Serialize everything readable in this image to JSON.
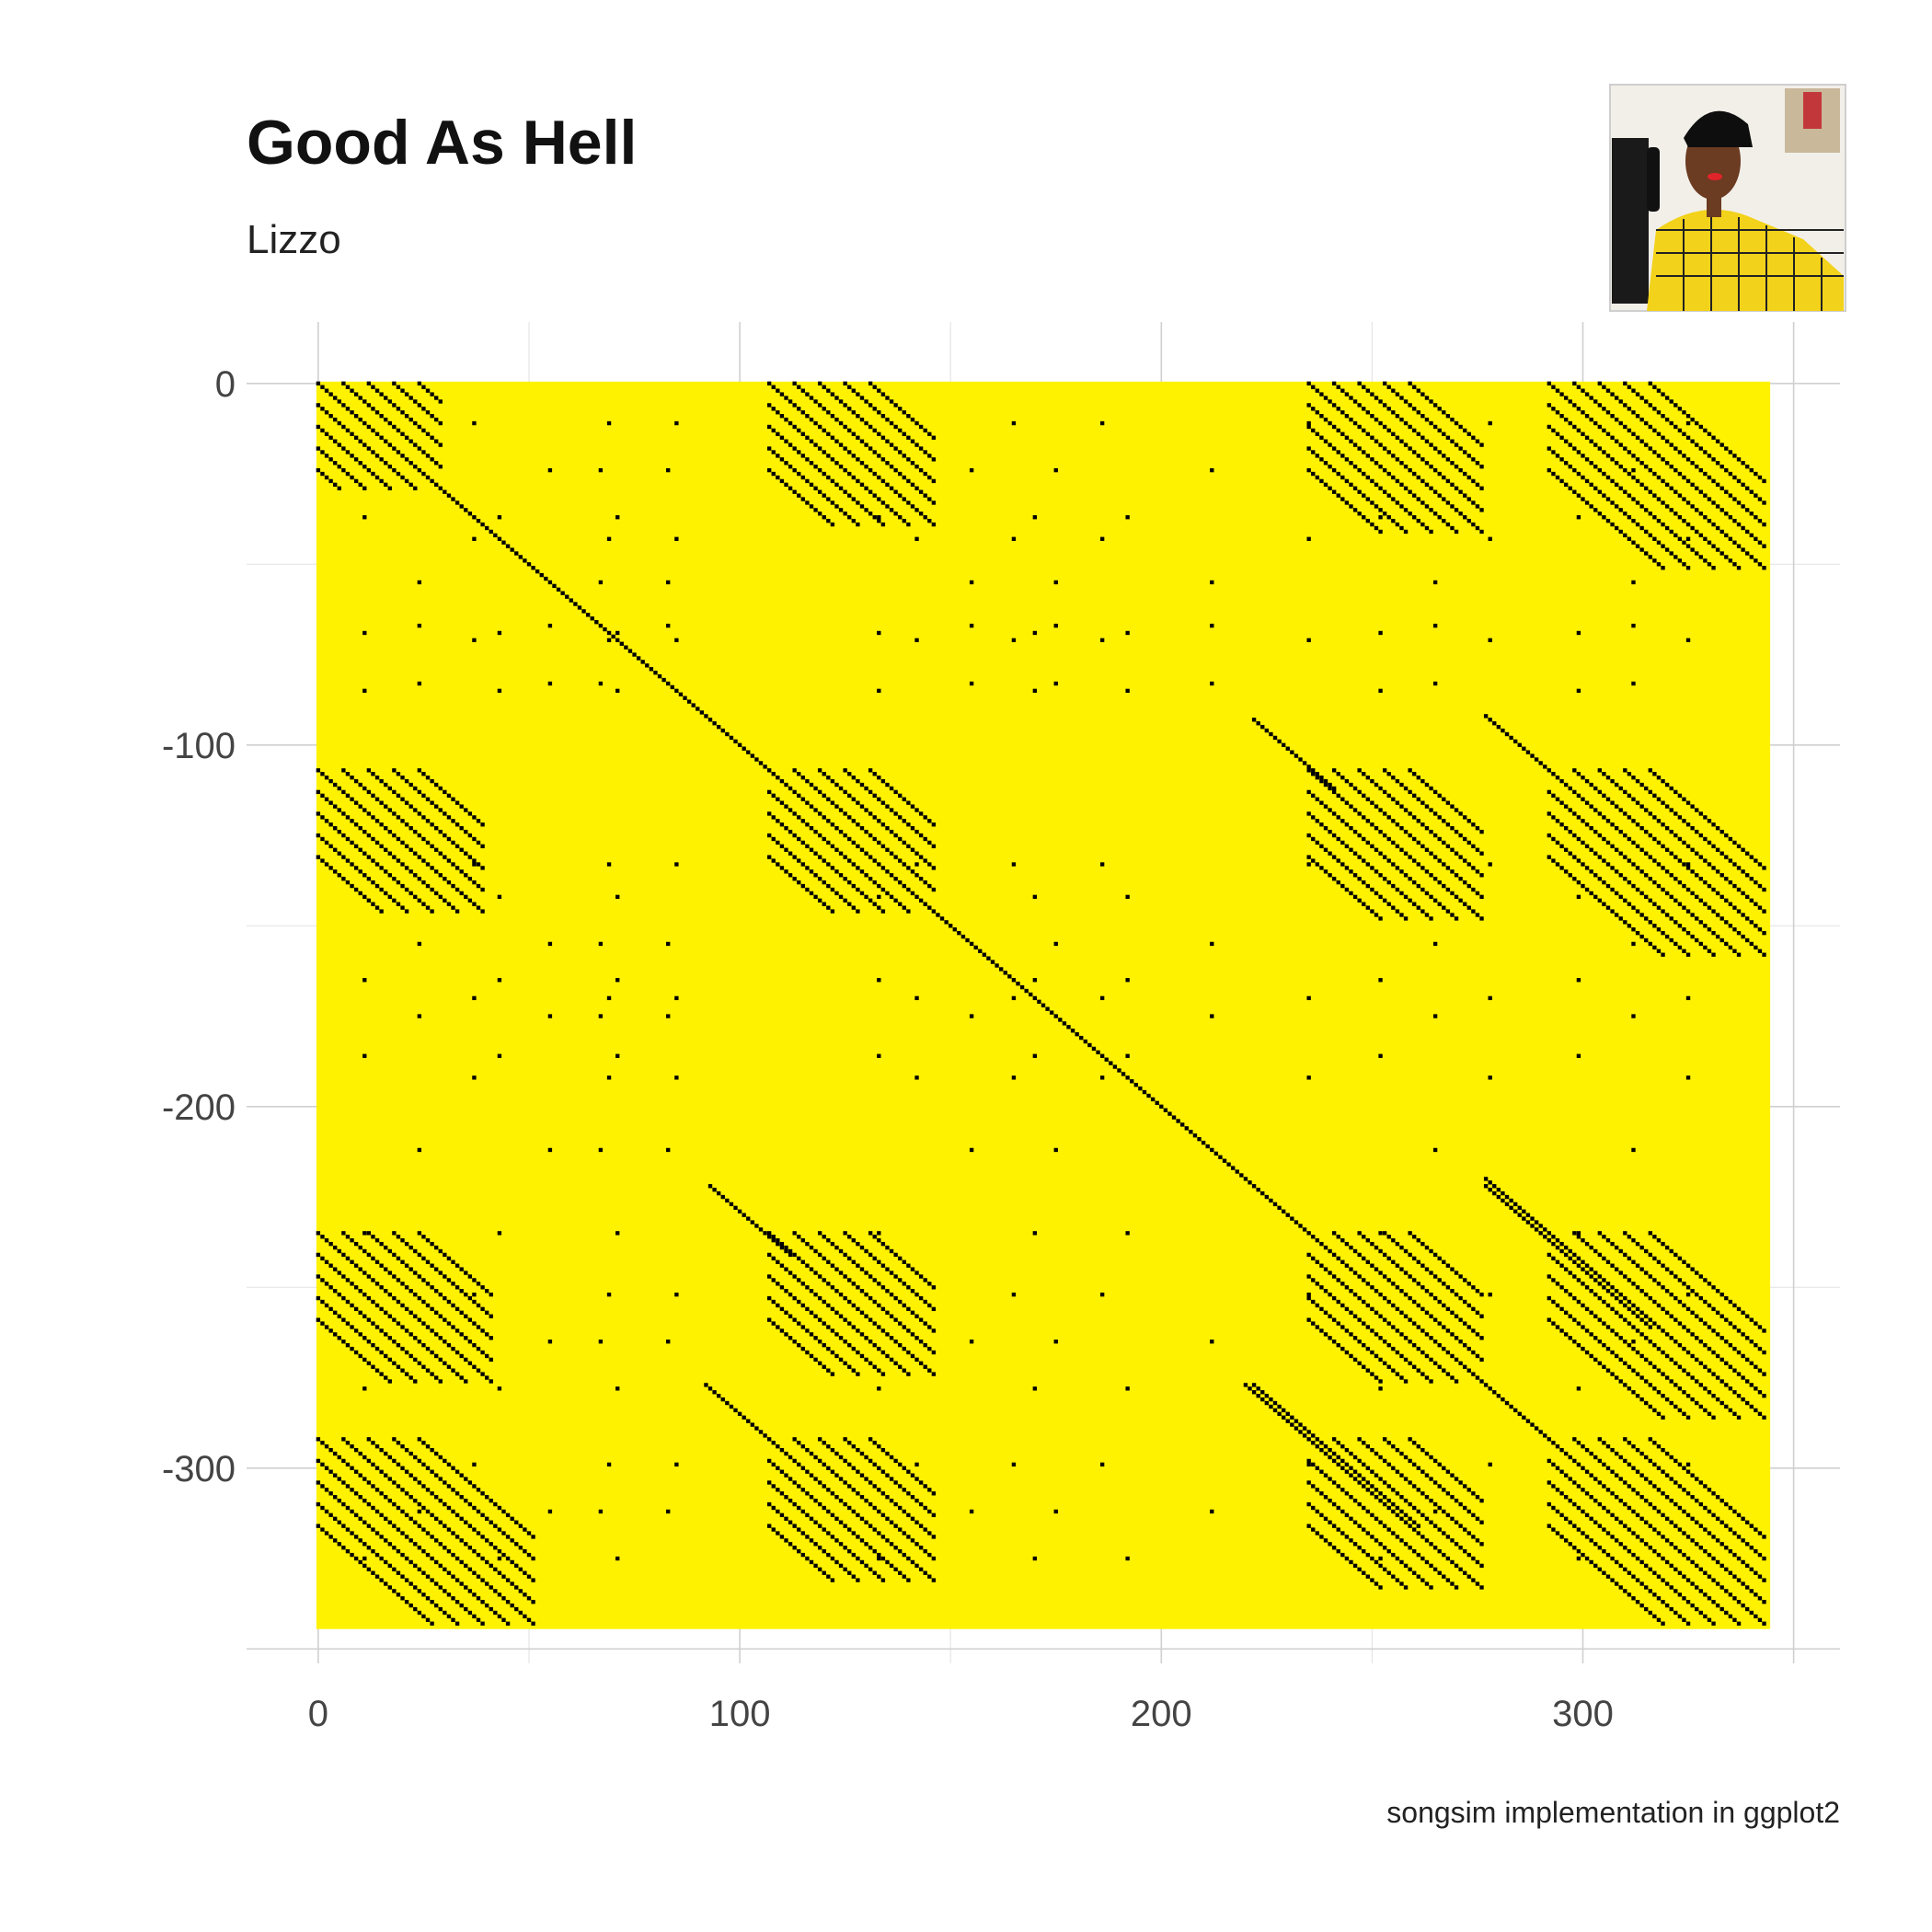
{
  "chart_data": {
    "type": "heatmap",
    "title": "Good As Hell",
    "subtitle": "Lizzo",
    "caption": "songsim implementation in ggplot2",
    "xlabel": "",
    "ylabel": "",
    "n_words": 344,
    "xlim": [
      -17,
      361
    ],
    "ylim": [
      -354,
      17
    ],
    "x_ticks": [
      0,
      100,
      200,
      300
    ],
    "y_ticks": [
      0,
      -100,
      -200,
      -300
    ],
    "grid": true,
    "fill_color": "#fff200",
    "point_color": "#000000",
    "repeated_blocks": [
      {
        "x": 0,
        "y": 0,
        "len": 30
      },
      {
        "x": 107,
        "y": 0,
        "len": 40
      },
      {
        "x": 235,
        "y": 0,
        "len": 42
      },
      {
        "x": 292,
        "y": 0,
        "len": 52
      },
      {
        "x": 0,
        "y": 107,
        "len": 40
      },
      {
        "x": 107,
        "y": 107,
        "len": 40
      },
      {
        "x": 235,
        "y": 107,
        "len": 42
      },
      {
        "x": 292,
        "y": 107,
        "len": 52
      },
      {
        "x": 0,
        "y": 235,
        "len": 42
      },
      {
        "x": 107,
        "y": 235,
        "len": 40
      },
      {
        "x": 235,
        "y": 235,
        "len": 42
      },
      {
        "x": 292,
        "y": 235,
        "len": 52
      },
      {
        "x": 0,
        "y": 292,
        "len": 52
      },
      {
        "x": 107,
        "y": 292,
        "len": 40
      },
      {
        "x": 235,
        "y": 292,
        "len": 42
      },
      {
        "x": 292,
        "y": 292,
        "len": 52
      }
    ],
    "long_diagonals": [
      {
        "x": 93,
        "y": 222,
        "len": 20
      },
      {
        "x": 222,
        "y": 93,
        "len": 20
      },
      {
        "x": 92,
        "y": 277,
        "len": 30
      },
      {
        "x": 277,
        "y": 92,
        "len": 30
      },
      {
        "x": 220,
        "y": 277,
        "len": 30
      },
      {
        "x": 277,
        "y": 220,
        "len": 30
      },
      {
        "x": 277,
        "y": 222,
        "len": 40
      },
      {
        "x": 222,
        "y": 277,
        "len": 40
      }
    ],
    "repeated_word_positions": [
      67,
      69,
      71,
      83,
      85,
      11,
      24,
      37,
      43,
      55,
      142,
      133,
      155,
      165,
      170,
      175,
      186,
      192,
      212,
      235,
      252,
      265,
      278,
      299,
      312,
      325
    ]
  },
  "album_art": {
    "description": "album cover thumbnail"
  }
}
